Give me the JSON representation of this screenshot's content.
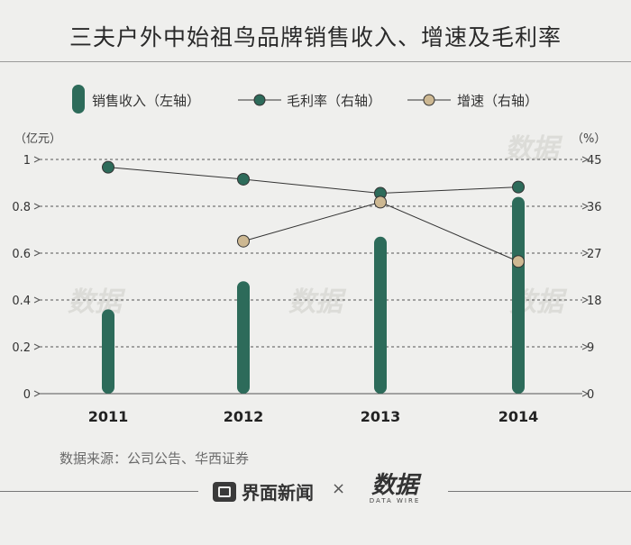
{
  "title": "三夫户外中始祖鸟品牌销售收入、增速及毛利率",
  "chart_data": {
    "type": "bar+line",
    "categories": [
      "2011",
      "2012",
      "2013",
      "2014"
    ],
    "left_axis": {
      "unit_label": "（亿元）",
      "ticks": [
        "0",
        "0.2",
        "0.4",
        "0.6",
        "0.8",
        "1"
      ],
      "range": [
        0,
        1
      ]
    },
    "right_axis": {
      "unit_label": "（%）",
      "ticks": [
        "0",
        "9",
        "18",
        "27",
        "36",
        "45"
      ],
      "range": [
        0,
        45
      ]
    },
    "series": [
      {
        "name": "销售收入（左轴）",
        "type": "bar",
        "axis": "left",
        "color": "#2d6b5a",
        "values": [
          0.36,
          0.48,
          0.67,
          0.84
        ]
      },
      {
        "name": "毛利率（右轴）",
        "type": "line",
        "axis": "right",
        "color": "#2d6b5a",
        "values": [
          43.5,
          41.2,
          38.5,
          39.7
        ]
      },
      {
        "name": "增速（右轴）",
        "type": "line",
        "axis": "right",
        "color": "#cdb892",
        "values": [
          null,
          29.3,
          36.8,
          25.4
        ]
      }
    ],
    "grid": "dashed horizontal",
    "legend_position": "top"
  },
  "source": "数据来源：公司公告、华西证券",
  "footer": {
    "left_brand": "界面新闻",
    "separator": "×",
    "right_brand": "数据",
    "right_brand_sub": "DATA WIRE"
  },
  "watermark": "数据"
}
